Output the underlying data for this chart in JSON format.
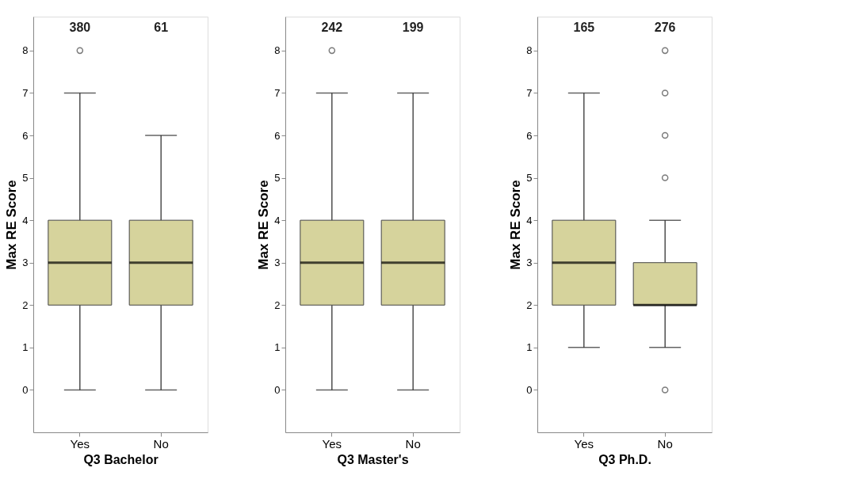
{
  "chart_data": [
    {
      "type": "box",
      "xlabel": "Q3 Bachelor",
      "ylabel": "Max RE Score",
      "categories": [
        "Yes",
        "No"
      ],
      "color": "#d6d39c",
      "ylim": [
        -1,
        8.8
      ],
      "yticks": [
        0,
        1,
        2,
        3,
        4,
        5,
        6,
        7,
        8
      ],
      "grid": false,
      "marker": "circle",
      "boxes": [
        {
          "low": 0,
          "q1": 2,
          "median": 3,
          "q3": 4,
          "high": 7,
          "outliers": [
            8
          ]
        },
        {
          "low": 0,
          "q1": 2,
          "median": 3,
          "q3": 4,
          "high": 6
        }
      ],
      "annotations": [
        "380",
        "61"
      ]
    },
    {
      "type": "box",
      "xlabel": "Q3 Master's",
      "ylabel": "Max RE Score",
      "categories": [
        "Yes",
        "No"
      ],
      "color": "#d6d39c",
      "ylim": [
        -1,
        8.8
      ],
      "yticks": [
        0,
        1,
        2,
        3,
        4,
        5,
        6,
        7,
        8
      ],
      "grid": false,
      "marker": "circle",
      "boxes": [
        {
          "low": 0,
          "q1": 2,
          "median": 3,
          "q3": 4,
          "high": 7,
          "outliers": [
            8
          ]
        },
        {
          "low": 0,
          "q1": 2,
          "median": 3,
          "q3": 4,
          "high": 7
        }
      ],
      "annotations": [
        "242",
        "199"
      ]
    },
    {
      "type": "box",
      "xlabel": "Q3 Ph.D.",
      "ylabel": "Max RE Score",
      "categories": [
        "Yes",
        "No"
      ],
      "color": "#d6d39c",
      "ylim": [
        -1,
        8.8
      ],
      "yticks": [
        0,
        1,
        2,
        3,
        4,
        5,
        6,
        7,
        8
      ],
      "grid": false,
      "marker": "circle",
      "boxes": [
        {
          "low": 1,
          "q1": 2,
          "median": 3,
          "q3": 4,
          "high": 7
        },
        {
          "low": 1,
          "q1": 2,
          "median": 2,
          "q3": 3,
          "high": 4,
          "outliers": [
            0,
            5,
            6,
            7,
            8
          ]
        }
      ],
      "annotations": [
        "165",
        "276"
      ]
    }
  ]
}
